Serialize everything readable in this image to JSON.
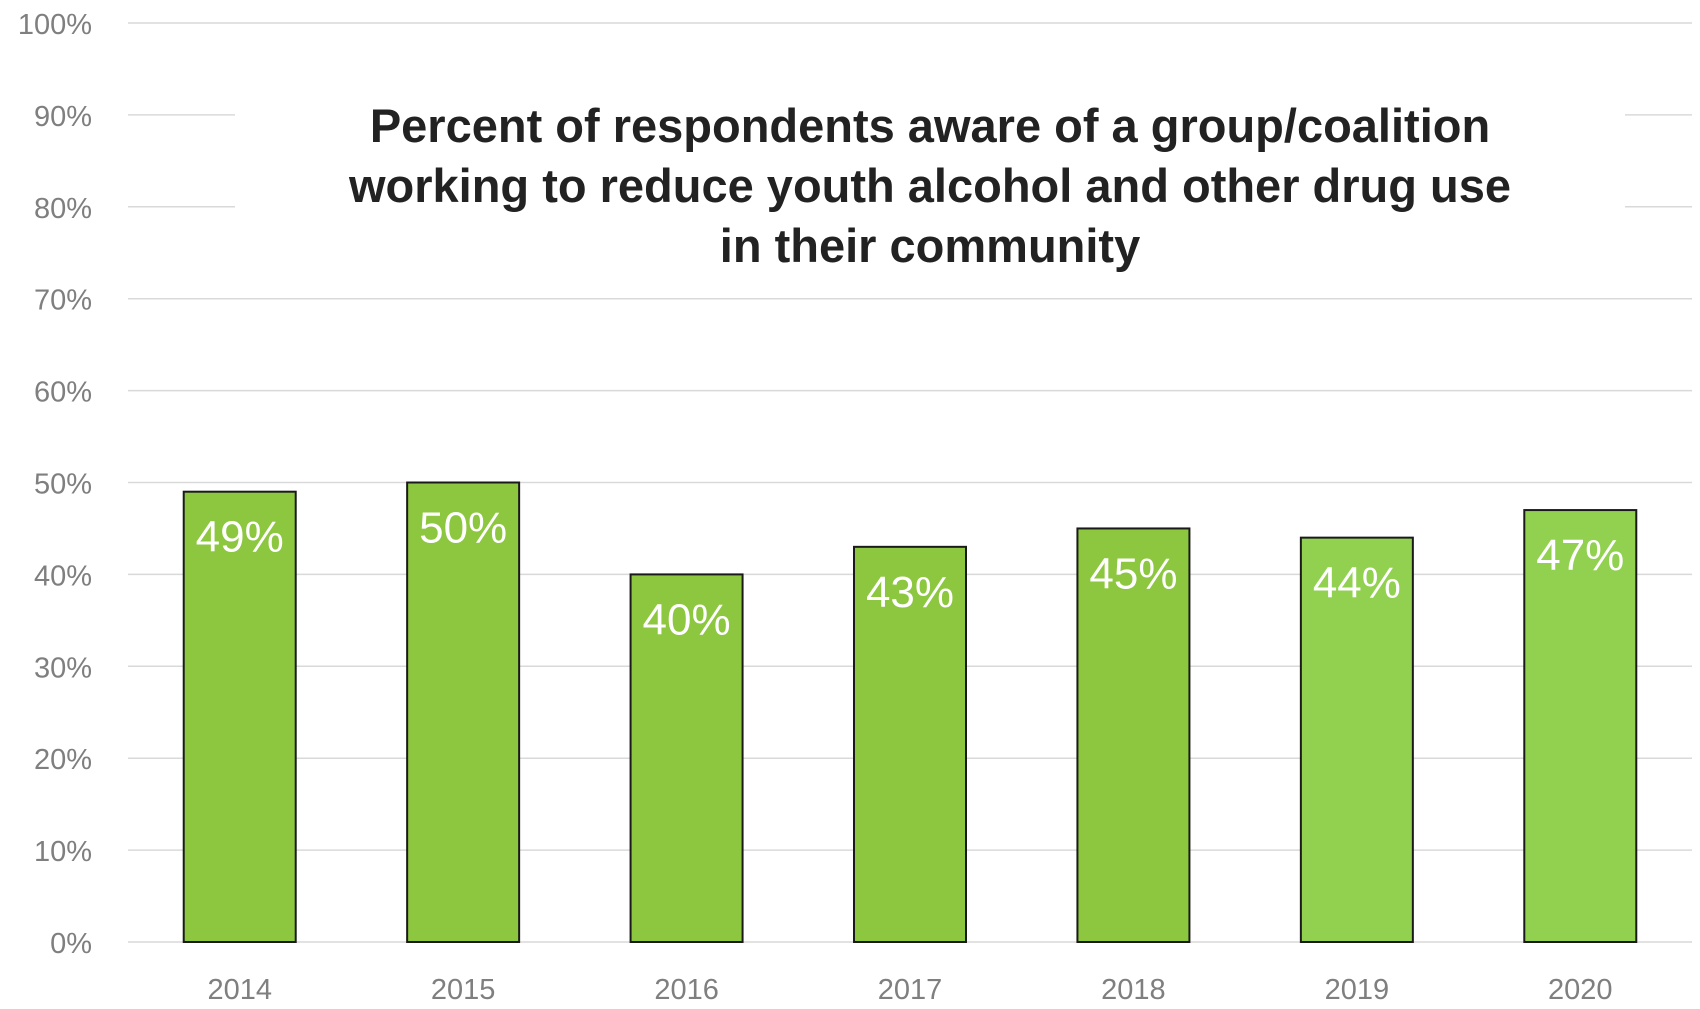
{
  "chart_data": {
    "type": "bar",
    "title_lines": [
      "Percent of respondents aware of a group/coalition",
      "working to reduce youth alcohol and other drug use",
      "in their community"
    ],
    "categories": [
      "2014",
      "2015",
      "2016",
      "2017",
      "2018",
      "2019",
      "2020"
    ],
    "values": [
      49,
      50,
      40,
      43,
      45,
      44,
      47
    ],
    "data_labels": [
      "49%",
      "50%",
      "40%",
      "43%",
      "45%",
      "44%",
      "47%"
    ],
    "y_ticks": [
      "0%",
      "10%",
      "20%",
      "30%",
      "40%",
      "50%",
      "60%",
      "70%",
      "80%",
      "90%",
      "100%"
    ],
    "ylim": [
      0,
      100
    ],
    "grid": true,
    "colors": {
      "bar": "#8dc63f",
      "bar_last_two": "#92d050",
      "bar_border": "#1a1a1a",
      "gridline": "#d9d9d9",
      "tick_text": "#7f7f7f",
      "data_label": "#ffffff",
      "title": "#222222"
    }
  }
}
